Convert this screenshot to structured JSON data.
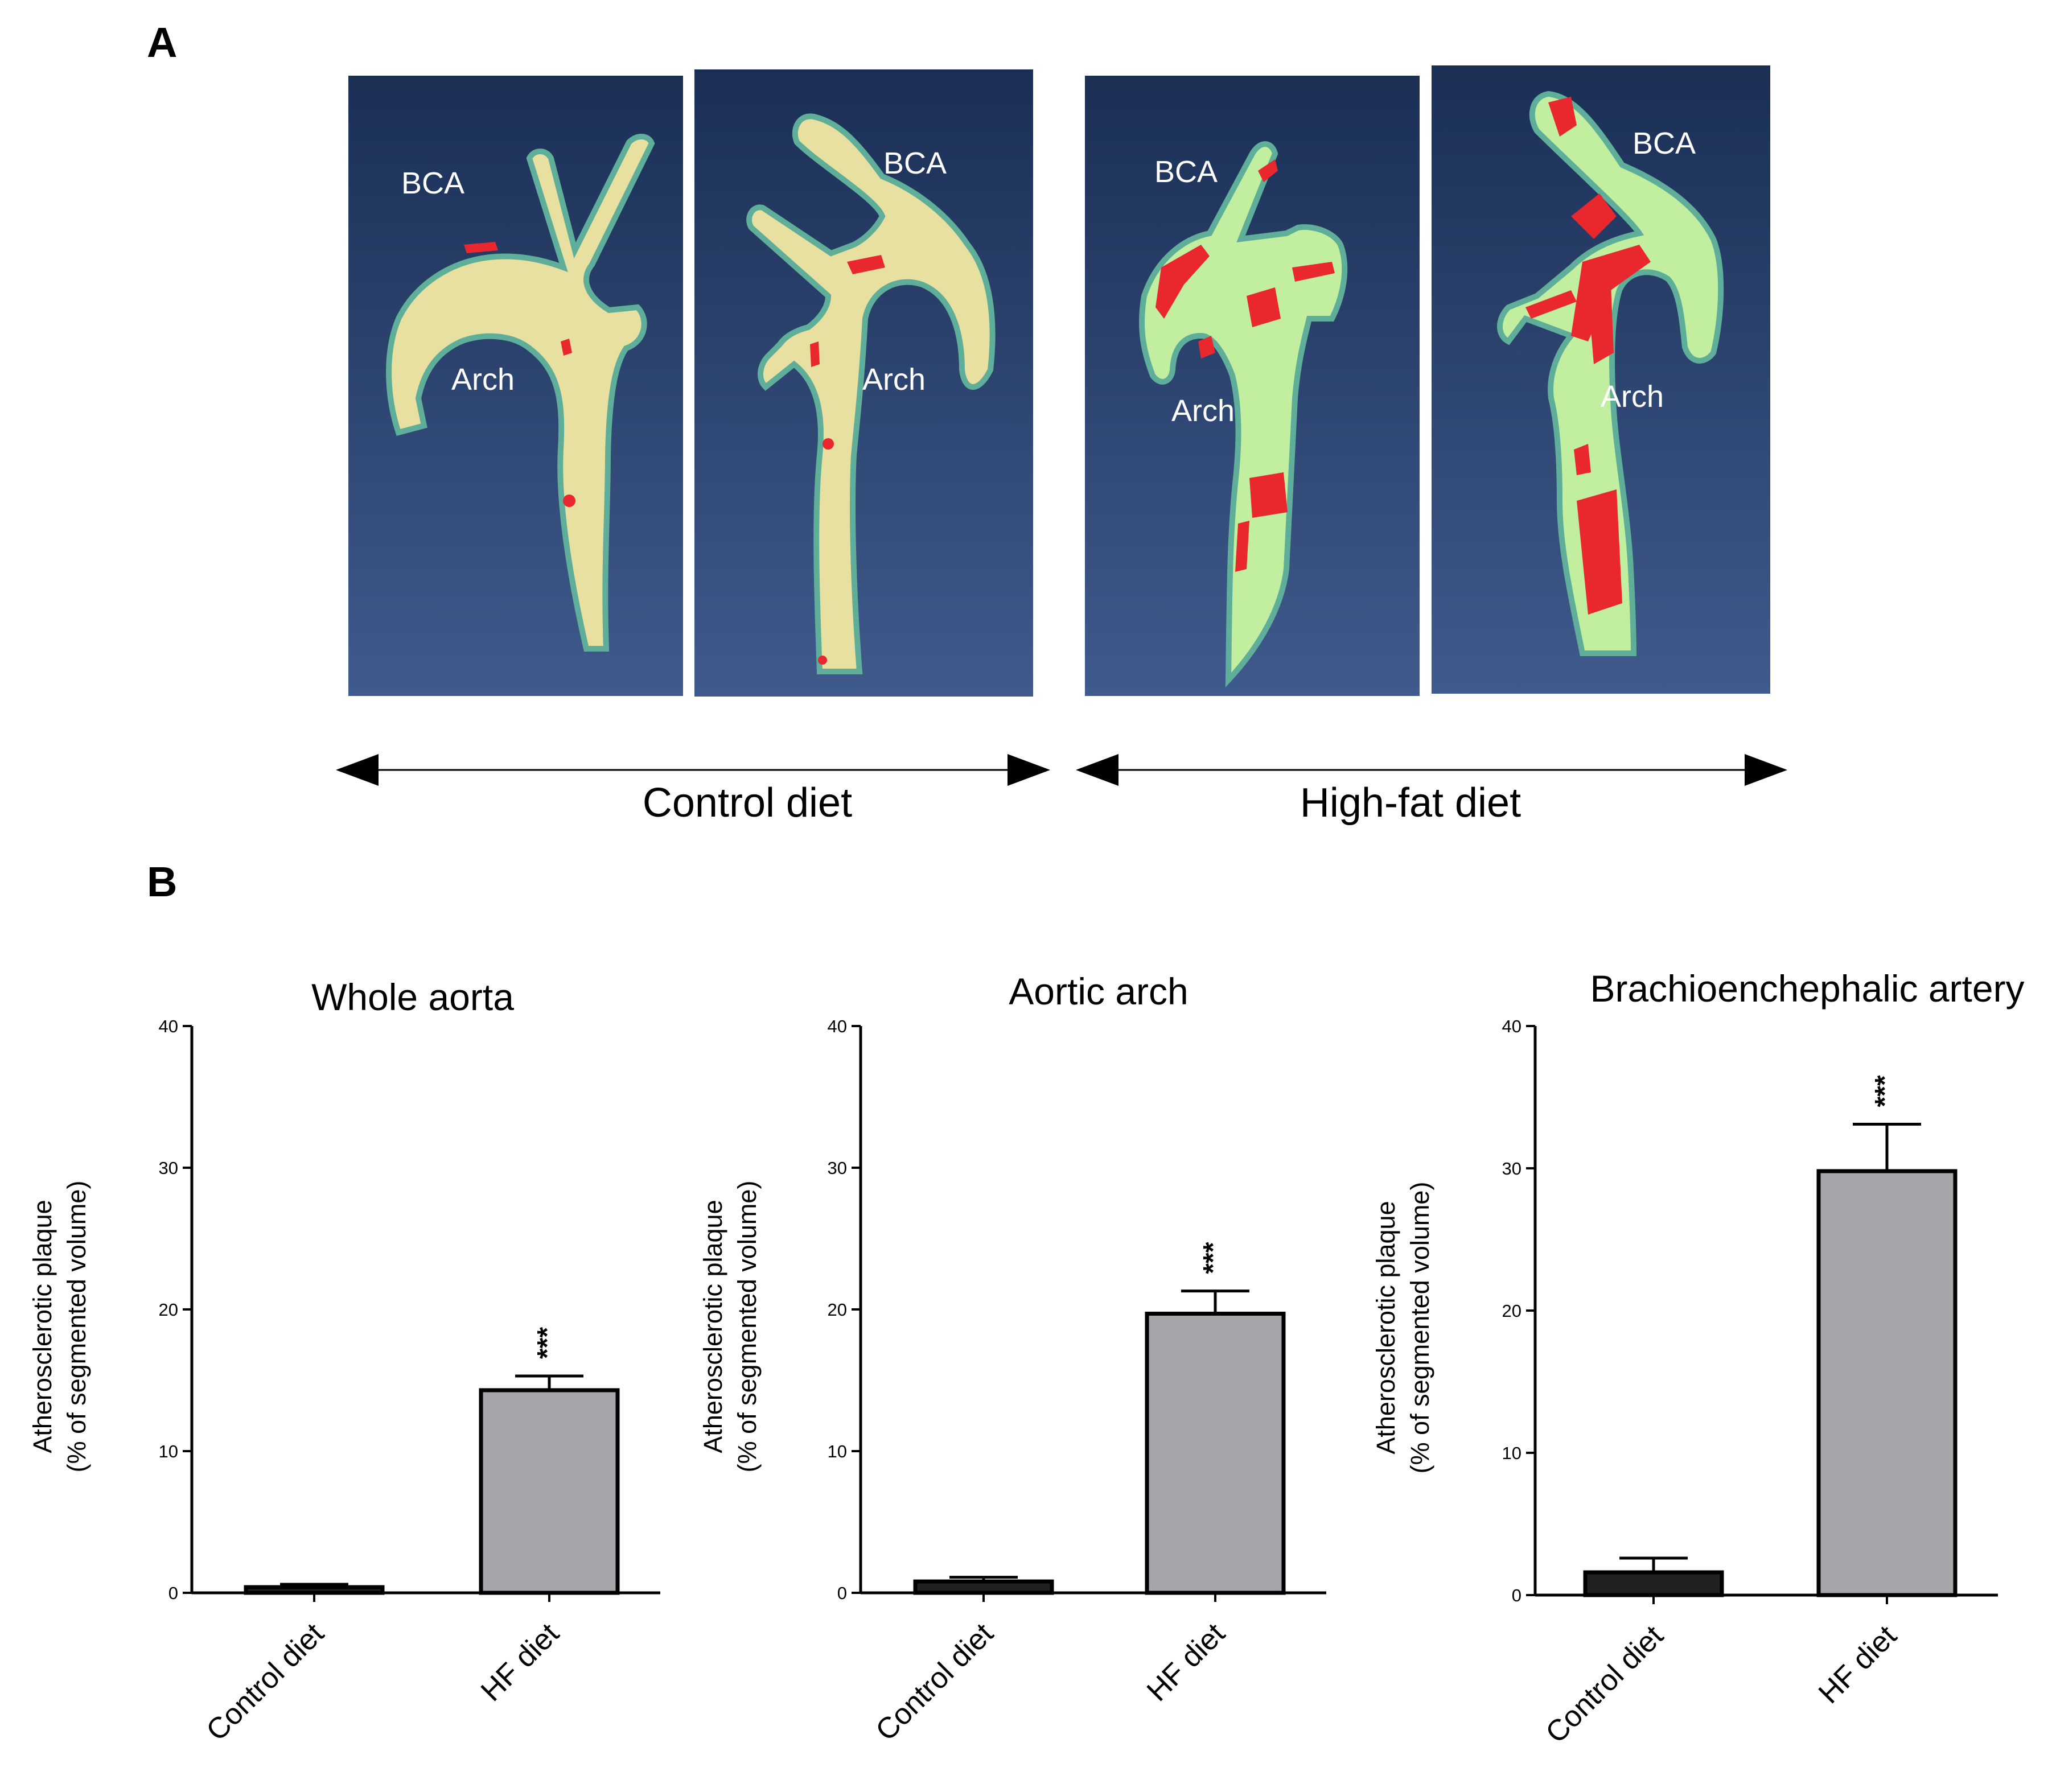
{
  "panel_a": {
    "letter": "A",
    "images": [
      {
        "group": "control",
        "labels": [
          "BCA",
          "Arch"
        ]
      },
      {
        "group": "control",
        "labels": [
          "BCA",
          "Arch"
        ]
      },
      {
        "group": "hf",
        "labels": [
          "BCA",
          "Arch"
        ]
      },
      {
        "group": "hf",
        "labels": [
          "BCA",
          "Arch"
        ]
      }
    ],
    "groups": [
      {
        "key": "control",
        "label": "Control diet"
      },
      {
        "key": "hf",
        "label": "High-fat diet"
      }
    ],
    "colors": {
      "background_top": "#1b2f55",
      "background_bottom": "#3f5a8c",
      "vessel_control": "#e8e0a0",
      "vessel_hf": "#c2ef9f",
      "plaque": "#e8272e",
      "rim": "#5fae9a"
    }
  },
  "panel_b": {
    "letter": "B"
  },
  "chart_data": [
    {
      "type": "bar",
      "title": "Whole aorta",
      "ylabel_lines": [
        "Atherosclerotic plaque",
        "(% of segmented volume)"
      ],
      "categories": [
        "Control diet",
        "HF diet"
      ],
      "values": [
        0.4,
        14.3
      ],
      "errors": [
        0.2,
        1.0
      ],
      "significance": [
        "",
        "***"
      ],
      "ylim": [
        0,
        40
      ],
      "yticks": [
        0,
        10,
        20,
        30,
        40
      ],
      "bar_colors": [
        "#1f2021",
        "#a5a6aa"
      ]
    },
    {
      "type": "bar",
      "title": "Aortic arch",
      "ylabel_lines": [
        "Atherosclerotic plaque",
        "(% of segmented volume)"
      ],
      "categories": [
        "Control diet",
        "HF diet"
      ],
      "values": [
        0.8,
        19.7
      ],
      "errors": [
        0.3,
        1.6
      ],
      "significance": [
        "",
        "***"
      ],
      "ylim": [
        0,
        40
      ],
      "yticks": [
        0,
        10,
        20,
        30,
        40
      ],
      "bar_colors": [
        "#1f2021",
        "#a5a6aa"
      ]
    },
    {
      "type": "bar",
      "title": "Brachioenchephalic artery",
      "ylabel_lines": [
        "Atherosclerotic plaque",
        "(% of segmented volume)"
      ],
      "categories": [
        "Control diet",
        "HF diet"
      ],
      "values": [
        1.6,
        29.8
      ],
      "errors": [
        1.0,
        3.3
      ],
      "significance": [
        "",
        "***"
      ],
      "ylim": [
        0,
        40
      ],
      "yticks": [
        0,
        10,
        20,
        30,
        40
      ],
      "bar_colors": [
        "#1f2021",
        "#a5a6aa"
      ]
    }
  ]
}
